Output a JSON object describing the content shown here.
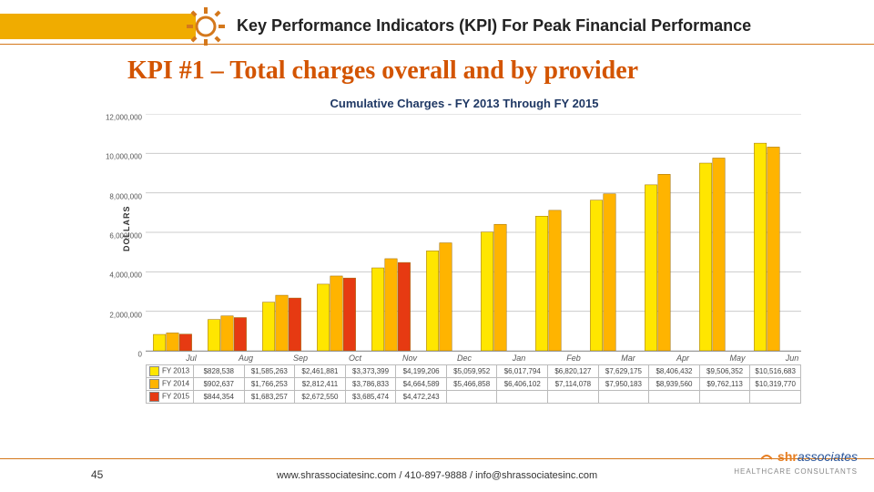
{
  "header": {
    "title": "Key Performance Indicators (KPI) For Peak Financial Performance",
    "accent_color": "#f0ac00",
    "rule_color": "#d4781c"
  },
  "subtitle": {
    "text": "KPI #1 – Total charges overall and by provider",
    "color": "#d35400",
    "fontsize": 28
  },
  "chart": {
    "type": "bar",
    "title": "Cumulative Charges - FY 2013 Through FY 2015",
    "title_color": "#1f3864",
    "ylabel": "DOLLARS",
    "ylim": [
      0,
      12000000
    ],
    "ytick_step": 2000000,
    "ytick_labels": [
      "0",
      "2,000,000",
      "4,000,000",
      "6,000,000",
      "8,000,000",
      "10,000,000",
      "12,000,000"
    ],
    "categories": [
      "Jul",
      "Aug",
      "Sep",
      "Oct",
      "Nov",
      "Dec",
      "Jan",
      "Feb",
      "Mar",
      "Apr",
      "May",
      "Jun"
    ],
    "series": [
      {
        "name": "FY 2013",
        "color": "#ffe600",
        "values": [
          828538,
          1585263,
          2461881,
          3373399,
          4199206,
          5059952,
          6017794,
          6820127,
          7629175,
          8406432,
          9506352,
          10516683
        ],
        "display": [
          "$828,538",
          "$1,585,263",
          "$2,461,881",
          "$3,373,399",
          "$4,199,206",
          "$5,059,952",
          "$6,017,794",
          "$6,820,127",
          "$7,629,175",
          "$8,406,432",
          "$9,506,352",
          "$10,516,683"
        ]
      },
      {
        "name": "FY 2014",
        "color": "#ffb400",
        "values": [
          902637,
          1766253,
          2812411,
          3786833,
          4664589,
          5466858,
          6406102,
          7114078,
          7950183,
          8939560,
          9762113,
          10319770
        ],
        "display": [
          "$902,637",
          "$1,766,253",
          "$2,812,411",
          "$3,786,833",
          "$4,664,589",
          "$5,466,858",
          "$6,406,102",
          "$7,114,078",
          "$7,950,183",
          "$8,939,560",
          "$9,762,113",
          "$10,319,770"
        ]
      },
      {
        "name": "FY 2015",
        "color": "#e63a12",
        "values": [
          844354,
          1683257,
          2672550,
          3685474,
          4472243,
          null,
          null,
          null,
          null,
          null,
          null,
          null
        ],
        "display": [
          "$844,354",
          "$1,683,257",
          "$2,672,550",
          "$3,685,474",
          "$4,472,243",
          "",
          "",
          "",
          "",
          "",
          "",
          ""
        ]
      }
    ],
    "grid_color": "#cccccc",
    "background_color": "#ffffff",
    "bar_group_width": 0.72
  },
  "footer": {
    "page_number": "45",
    "text": "www.shrassociatesinc.com / 410-897-9888 / info@shrassociatesinc.com",
    "logo_text_a": "shr",
    "logo_text_b": "associates",
    "logo_sub": "HEALTHCARE CONSULTANTS"
  }
}
